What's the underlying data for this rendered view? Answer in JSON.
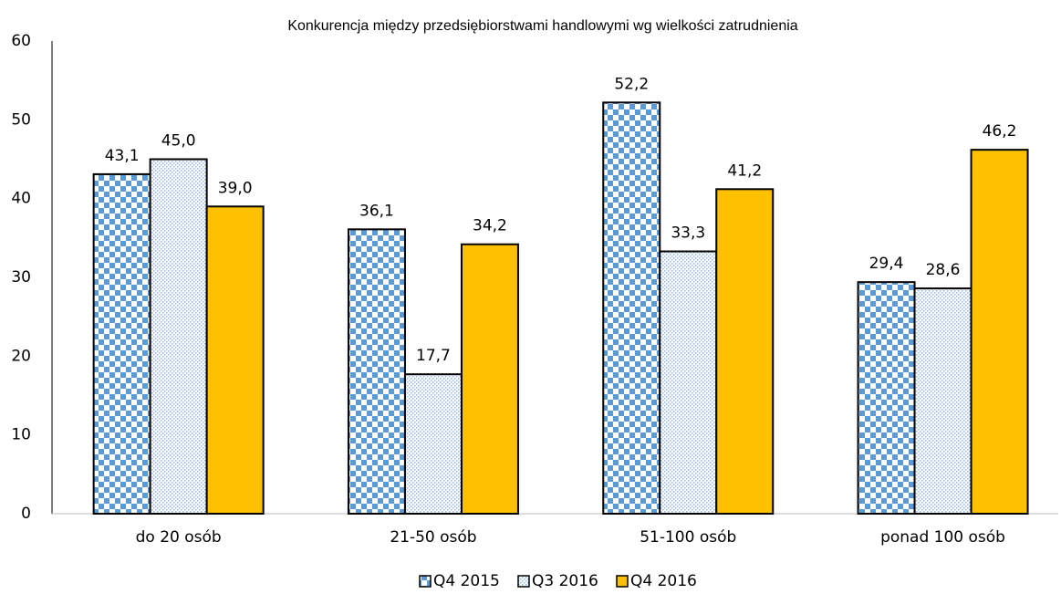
{
  "chart_data": {
    "type": "bar",
    "title": "Konkurencja między przedsiębiorstwami handlowymi wg wielkości zatrudnienia",
    "categories": [
      "do 20 osób",
      "21-50 osób",
      "51-100 osób",
      "ponad 100 osób"
    ],
    "series": [
      {
        "name": "Q4 2015",
        "color": "#5b9bd5",
        "pattern": "checker",
        "values": [
          43.1,
          36.1,
          52.2,
          29.4
        ],
        "value_labels": [
          "43,1",
          "36,1",
          "52,2",
          "29,4"
        ]
      },
      {
        "name": "Q3 2016",
        "color": "#5b9bd5",
        "pattern": "dots",
        "values": [
          45.0,
          17.7,
          33.3,
          28.6
        ],
        "value_labels": [
          "45,0",
          "17,7",
          "33,3",
          "28,6"
        ]
      },
      {
        "name": "Q4 2016",
        "color": "#ffc000",
        "pattern": "solid",
        "values": [
          39.0,
          34.2,
          41.2,
          46.2
        ],
        "value_labels": [
          "39,0",
          "34,2",
          "41,2",
          "46,2"
        ]
      }
    ],
    "ylim": [
      0,
      60
    ],
    "yticks": [
      0,
      10,
      20,
      30,
      40,
      50,
      60
    ],
    "grid": false,
    "legend": "bottom"
  }
}
